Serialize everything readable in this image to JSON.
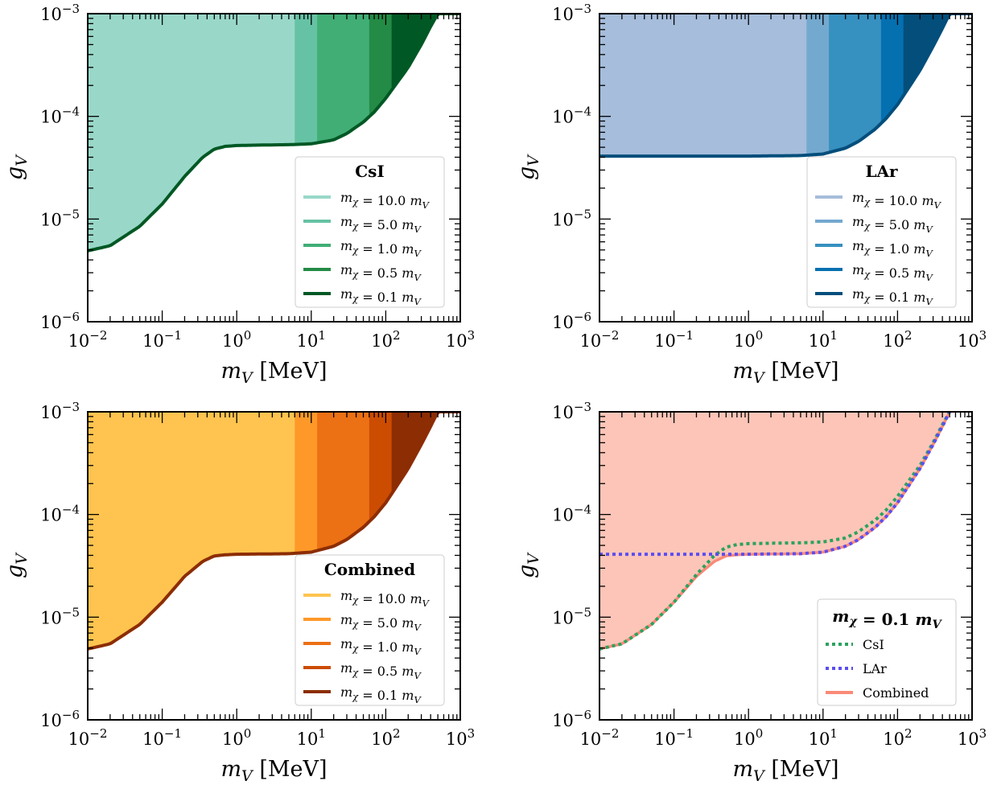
{
  "chart_data": [
    {
      "type": "area",
      "xlabel": "m_V [MeV]",
      "ylabel": "g_V",
      "xscale": "log",
      "yscale": "log",
      "xlim": [
        0.01,
        1000
      ],
      "ylim": [
        1e-06,
        0.001
      ],
      "x_ticks": [
        "10^-2",
        "10^-1",
        "10^0",
        "10^1",
        "10^2",
        "10^3"
      ],
      "y_ticks": [
        "10^-6",
        "10^-5",
        "10^-4",
        "10^-3"
      ],
      "legend_title": "CsI",
      "legend_position": "lower right",
      "series": [
        {
          "name": "m_χ = 10.0 m_V",
          "color": "#99d8c9",
          "x_max": 6.0
        },
        {
          "name": "m_χ = 5.0 m_V",
          "color": "#66c2a4",
          "x_max": 12.0
        },
        {
          "name": "m_χ = 1.0 m_V",
          "color": "#41ae76",
          "x_max": 60.0
        },
        {
          "name": "m_χ = 0.5 m_V",
          "color": "#238b45",
          "x_max": 120.0
        },
        {
          "name": "m_χ = 0.1 m_V",
          "color": "#005824",
          "x_max": 500.0
        }
      ],
      "lower_boundary": {
        "x": [
          0.01,
          0.02,
          0.05,
          0.1,
          0.2,
          0.35,
          0.5,
          0.7,
          1,
          2,
          5,
          10,
          20,
          30,
          50,
          70,
          100,
          200,
          300,
          400,
          500
        ],
        "y": [
          4.9e-06,
          5.5e-06,
          8.5e-06,
          1.4e-05,
          2.6e-05,
          4e-05,
          4.8e-05,
          5.1e-05,
          5.2e-05,
          5.25e-05,
          5.3e-05,
          5.4e-05,
          5.9e-05,
          6.8e-05,
          8.8e-05,
          0.00011,
          0.00015,
          0.0003,
          0.0005,
          0.00075,
          0.001
        ]
      }
    },
    {
      "type": "area",
      "xlabel": "m_V [MeV]",
      "ylabel": "g_V",
      "xscale": "log",
      "yscale": "log",
      "xlim": [
        0.01,
        1000
      ],
      "ylim": [
        1e-06,
        0.001
      ],
      "x_ticks": [
        "10^-2",
        "10^-1",
        "10^0",
        "10^1",
        "10^2",
        "10^3"
      ],
      "y_ticks": [
        "10^-6",
        "10^-5",
        "10^-4",
        "10^-3"
      ],
      "legend_title": "LAr",
      "legend_position": "lower right",
      "series": [
        {
          "name": "m_χ = 10.0 m_V",
          "color": "#a6bddb",
          "x_max": 6.0
        },
        {
          "name": "m_χ = 5.0 m_V",
          "color": "#74a9cf",
          "x_max": 12.0
        },
        {
          "name": "m_χ = 1.0 m_V",
          "color": "#3690c0",
          "x_max": 60.0
        },
        {
          "name": "m_χ = 0.5 m_V",
          "color": "#0570b0",
          "x_max": 120.0
        },
        {
          "name": "m_χ = 0.1 m_V",
          "color": "#034e7b",
          "x_max": 500.0
        }
      ],
      "lower_boundary": {
        "x": [
          0.01,
          0.1,
          1,
          5,
          10,
          20,
          30,
          50,
          70,
          100,
          200,
          300,
          400,
          500
        ],
        "y": [
          4.1e-05,
          4.1e-05,
          4.1e-05,
          4.15e-05,
          4.3e-05,
          4.9e-05,
          5.7e-05,
          7.5e-05,
          9.5e-05,
          0.00013,
          0.00028,
          0.00048,
          0.00072,
          0.001
        ]
      }
    },
    {
      "type": "area",
      "xlabel": "m_V [MeV]",
      "ylabel": "g_V",
      "xscale": "log",
      "yscale": "log",
      "xlim": [
        0.01,
        1000
      ],
      "ylim": [
        1e-06,
        0.001
      ],
      "x_ticks": [
        "10^-2",
        "10^-1",
        "10^0",
        "10^1",
        "10^2",
        "10^3"
      ],
      "y_ticks": [
        "10^-6",
        "10^-5",
        "10^-4",
        "10^-3"
      ],
      "legend_title": "Combined",
      "legend_position": "lower right",
      "series": [
        {
          "name": "m_χ = 10.0 m_V",
          "color": "#fec44f",
          "x_max": 6.0
        },
        {
          "name": "m_χ = 5.0 m_V",
          "color": "#fe9929",
          "x_max": 12.0
        },
        {
          "name": "m_χ = 1.0 m_V",
          "color": "#ec7014",
          "x_max": 60.0
        },
        {
          "name": "m_χ = 0.5 m_V",
          "color": "#cc4c02",
          "x_max": 120.0
        },
        {
          "name": "m_χ = 0.1 m_V",
          "color": "#8c2d04",
          "x_max": 500.0
        }
      ],
      "lower_boundary": {
        "x": [
          0.01,
          0.02,
          0.05,
          0.1,
          0.2,
          0.35,
          0.5,
          0.7,
          1,
          2,
          5,
          10,
          20,
          30,
          50,
          70,
          100,
          200,
          300,
          400,
          500
        ],
        "y": [
          4.9e-06,
          5.5e-06,
          8.5e-06,
          1.4e-05,
          2.5e-05,
          3.5e-05,
          3.95e-05,
          4.05e-05,
          4.1e-05,
          4.12e-05,
          4.15e-05,
          4.3e-05,
          4.9e-05,
          5.7e-05,
          7.5e-05,
          9.5e-05,
          0.00013,
          0.00028,
          0.00048,
          0.00072,
          0.001
        ]
      }
    },
    {
      "type": "line",
      "xlabel": "m_V [MeV]",
      "ylabel": "g_V",
      "xscale": "log",
      "yscale": "log",
      "xlim": [
        0.01,
        1000
      ],
      "ylim": [
        1e-06,
        0.001
      ],
      "x_ticks": [
        "10^-2",
        "10^-1",
        "10^0",
        "10^1",
        "10^2",
        "10^3"
      ],
      "y_ticks": [
        "10^-6",
        "10^-5",
        "10^-4",
        "10^-3"
      ],
      "legend_title": "m_χ = 0.1 m_V",
      "legend_position": "lower right",
      "fill_color": "#fcc5b8",
      "series": [
        {
          "name": "CsI",
          "color": "#2ca25f",
          "style": "dotted",
          "x": [
            0.01,
            0.02,
            0.05,
            0.1,
            0.2,
            0.35,
            0.5,
            0.7,
            1,
            2,
            5,
            10,
            20,
            30,
            50,
            70,
            100,
            200,
            300,
            400,
            500
          ],
          "y": [
            4.9e-06,
            5.5e-06,
            8.5e-06,
            1.4e-05,
            2.6e-05,
            4e-05,
            4.8e-05,
            5.1e-05,
            5.2e-05,
            5.25e-05,
            5.3e-05,
            5.4e-05,
            5.9e-05,
            6.8e-05,
            8.8e-05,
            0.00011,
            0.00015,
            0.0003,
            0.0005,
            0.00075,
            0.001
          ]
        },
        {
          "name": "LAr",
          "color": "#5b4df0",
          "style": "dotted",
          "x": [
            0.01,
            0.1,
            1,
            5,
            10,
            20,
            30,
            50,
            70,
            100,
            200,
            300,
            400,
            500
          ],
          "y": [
            4.1e-05,
            4.1e-05,
            4.1e-05,
            4.15e-05,
            4.3e-05,
            4.9e-05,
            5.7e-05,
            7.5e-05,
            9.5e-05,
            0.00013,
            0.00028,
            0.00048,
            0.00072,
            0.001
          ]
        },
        {
          "name": "Combined",
          "color": "#fa8a78",
          "style": "solid",
          "x": [
            0.01,
            0.02,
            0.05,
            0.1,
            0.2,
            0.35,
            0.5,
            0.7,
            1,
            2,
            5,
            10,
            20,
            30,
            50,
            70,
            100,
            200,
            300,
            400,
            500
          ],
          "y": [
            4.9e-06,
            5.5e-06,
            8.5e-06,
            1.4e-05,
            2.5e-05,
            3.5e-05,
            3.95e-05,
            4.05e-05,
            4.1e-05,
            4.12e-05,
            4.15e-05,
            4.3e-05,
            4.9e-05,
            5.7e-05,
            7.5e-05,
            9.5e-05,
            0.00013,
            0.00028,
            0.00048,
            0.00072,
            0.001
          ]
        }
      ]
    }
  ]
}
